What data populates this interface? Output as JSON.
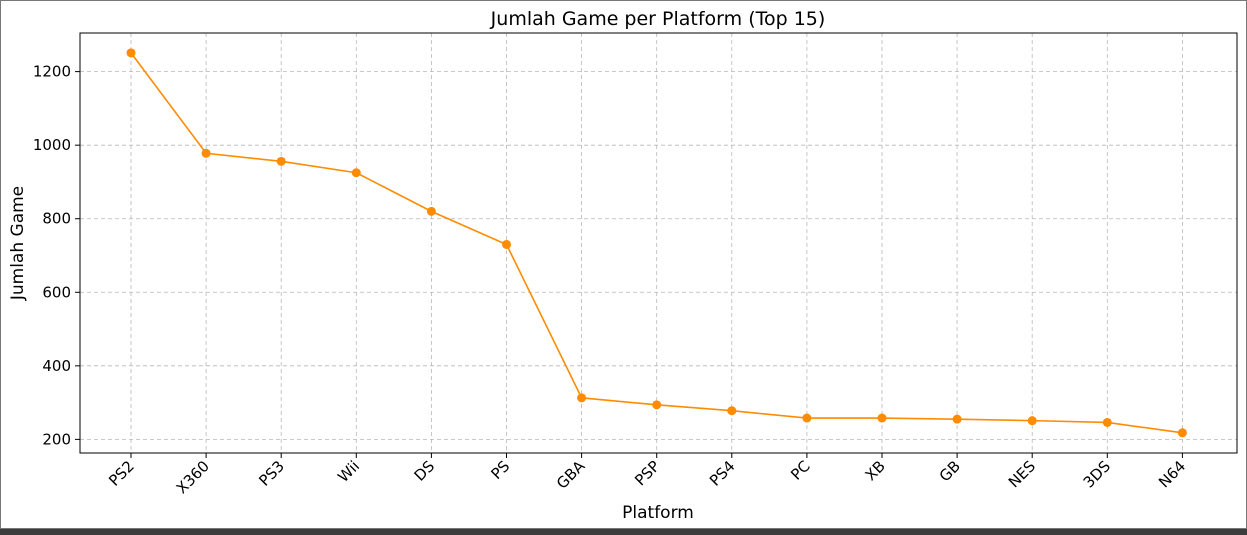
{
  "chart_data": {
    "type": "line",
    "title": "Jumlah Game per Platform (Top 15)",
    "xlabel": "Platform",
    "ylabel": "Jumlah Game",
    "categories": [
      "PS2",
      "X360",
      "PS3",
      "Wii",
      "DS",
      "PS",
      "GBA",
      "PSP",
      "PS4",
      "PC",
      "XB",
      "GB",
      "NES",
      "3DS",
      "N64"
    ],
    "series": [
      {
        "values": [
          1251,
          978,
          956,
          925,
          820,
          730,
          313,
          294,
          278,
          258,
          258,
          255,
          251,
          246,
          218
        ]
      }
    ],
    "ylim": [
      163,
      1305
    ],
    "yticks": [
      200,
      400,
      600,
      800,
      1000,
      1200
    ],
    "grid": true,
    "grid_style": "dashed",
    "line_color": "#ff8c00",
    "marker": "circle",
    "x_tick_rotation": 45
  }
}
